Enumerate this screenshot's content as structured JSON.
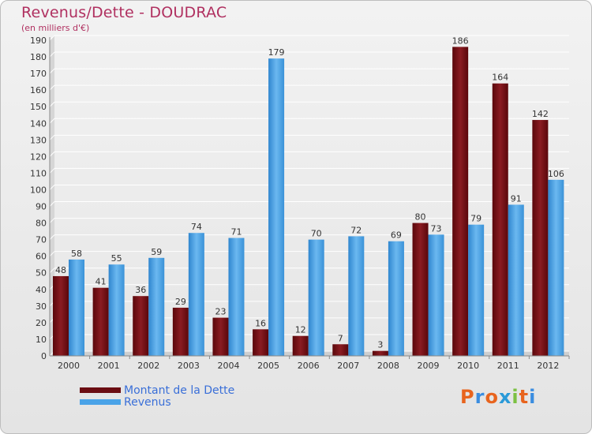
{
  "header": {
    "title": "Revenus/Dette - DOUDRAC",
    "subtitle": "(en milliers d'€)"
  },
  "legend": {
    "items": [
      {
        "label": "Montant de la Dette",
        "color": "#6b0d12"
      },
      {
        "label": "Revenus",
        "color": "#4aa3e8"
      }
    ]
  },
  "logo": {
    "letters": [
      "P",
      "r",
      "o",
      "x",
      "i",
      "t",
      "i"
    ],
    "colors": [
      "#e8641e",
      "#3a8de0",
      "#e8641e",
      "#2a9ad8",
      "#7cc142",
      "#e8641e",
      "#3a8de0"
    ]
  },
  "chart_data": {
    "type": "bar",
    "title": "Revenus/Dette - DOUDRAC",
    "ylabel": "(en milliers d'€)",
    "xlabel": "",
    "categories": [
      "2000",
      "2001",
      "2002",
      "2003",
      "2004",
      "2005",
      "2006",
      "2007",
      "2008",
      "2009",
      "2010",
      "2011",
      "2012"
    ],
    "series": [
      {
        "name": "Montant de la Dette",
        "color": "#6b0d12",
        "values": [
          48,
          41,
          36,
          29,
          23,
          16,
          12,
          7,
          3,
          80,
          186,
          164,
          142
        ]
      },
      {
        "name": "Revenus",
        "color": "#4aa3e8",
        "values": [
          58,
          55,
          59,
          74,
          71,
          179,
          70,
          72,
          69,
          73,
          79,
          91,
          106
        ]
      }
    ],
    "ylim": [
      0,
      190
    ],
    "yticks": [
      0,
      10,
      20,
      30,
      40,
      50,
      60,
      70,
      80,
      90,
      100,
      110,
      120,
      130,
      140,
      150,
      160,
      170,
      180,
      190
    ],
    "grid": true,
    "legend_position": "bottom-left"
  }
}
